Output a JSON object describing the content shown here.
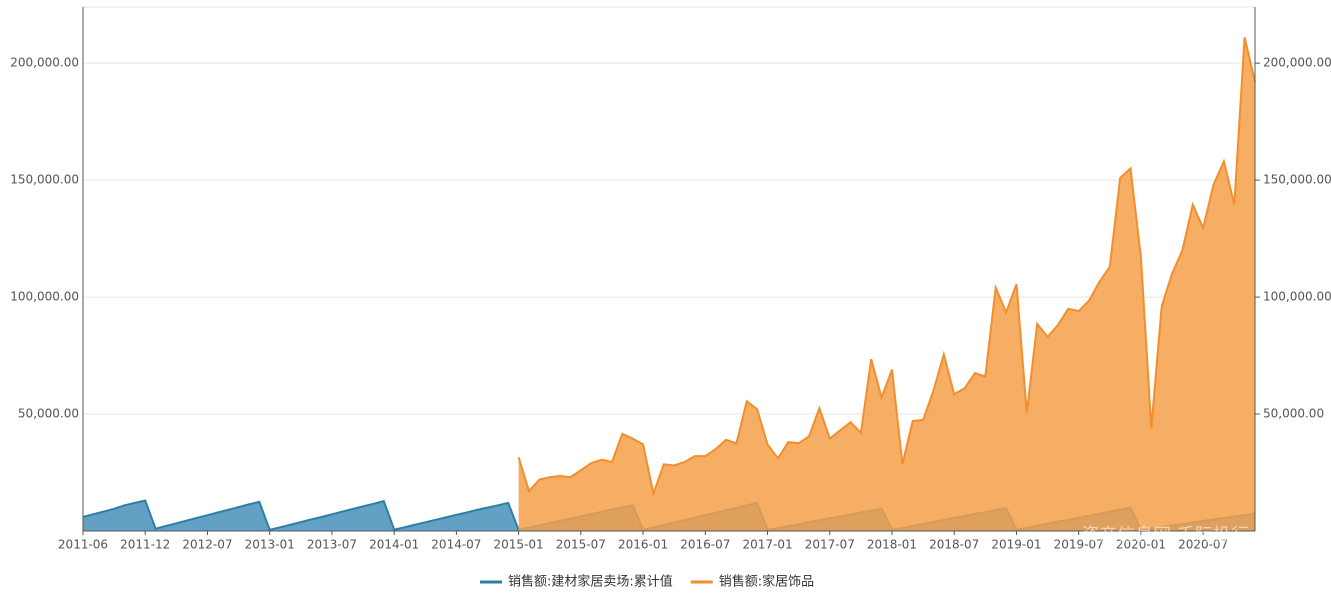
{
  "chart_data": {
    "type": "area",
    "categories": [
      "2011-06",
      null,
      null,
      null,
      null,
      null,
      "2011-12",
      null,
      null,
      null,
      null,
      null,
      "2012-07",
      null,
      null,
      null,
      null,
      null,
      "2013-01",
      null,
      null,
      null,
      null,
      null,
      "2013-07",
      null,
      null,
      null,
      null,
      null,
      "2014-01",
      null,
      null,
      null,
      null,
      null,
      "2014-07",
      null,
      null,
      null,
      null,
      null,
      "2015-01",
      null,
      null,
      null,
      null,
      null,
      "2015-07",
      null,
      null,
      null,
      null,
      null,
      "2016-01",
      null,
      null,
      null,
      null,
      null,
      "2016-07",
      null,
      null,
      null,
      null,
      null,
      "2017-01",
      null,
      null,
      null,
      null,
      null,
      "2017-07",
      null,
      null,
      null,
      null,
      null,
      "2018-01",
      null,
      null,
      null,
      null,
      null,
      "2018-07",
      null,
      null,
      null,
      null,
      null,
      "2019-01",
      null,
      null,
      null,
      null,
      null,
      "2019-07",
      null,
      null,
      null,
      null,
      null,
      "2020-01",
      null,
      null,
      null,
      null,
      null,
      "2020-07",
      null,
      null,
      null,
      null,
      null
    ],
    "series": [
      {
        "name": "销售额:建材家居卖场:累计值",
        "color": "#2e7ea6",
        "fill": "#3b8ab5",
        "axis": "y",
        "values": [
          6000,
          7200,
          8300,
          9500,
          11000,
          12000,
          13000,
          1000,
          2150,
          3300,
          4450,
          5600,
          6750,
          7900,
          9050,
          10200,
          11350,
          12500,
          500,
          1600,
          2700,
          3800,
          4900,
          6000,
          7100,
          8300,
          9400,
          10500,
          11600,
          12800,
          600,
          1600,
          2700,
          3700,
          4800,
          5800,
          6900,
          7900,
          9000,
          10000,
          11000,
          12000,
          500,
          1500,
          2400,
          3400,
          4400,
          5300,
          6300,
          7200,
          8200,
          9200,
          10100,
          11000,
          500,
          1500,
          2600,
          3600,
          4700,
          5700,
          6800,
          7800,
          8900,
          9900,
          11000,
          12000,
          500,
          1300,
          2100,
          2900,
          3800,
          4600,
          5400,
          6200,
          7000,
          7900,
          8700,
          9500,
          500,
          1300,
          2200,
          3000,
          3900,
          4700,
          5600,
          6400,
          7300,
          8100,
          9000,
          9800,
          500,
          1400,
          2200,
          3100,
          4000,
          4800,
          5700,
          6600,
          7400,
          8300,
          9200,
          10000,
          500,
          1100,
          1700,
          2400,
          3000,
          3600,
          4300,
          4900,
          5500,
          6200,
          6800,
          7500
        ]
      },
      {
        "name": "销售额:家居饰品",
        "color": "#f28e2b",
        "fill": "#f5a04a",
        "axis": "y2",
        "values": [
          null,
          null,
          null,
          null,
          null,
          null,
          null,
          null,
          null,
          null,
          null,
          null,
          null,
          null,
          null,
          null,
          null,
          null,
          null,
          null,
          null,
          null,
          null,
          null,
          null,
          null,
          null,
          null,
          null,
          null,
          null,
          null,
          null,
          null,
          null,
          null,
          null,
          null,
          null,
          null,
          null,
          null,
          31500,
          17000,
          22000,
          23000,
          23500,
          23000,
          26000,
          29000,
          30500,
          29500,
          41500,
          39500,
          37000,
          16000,
          28500,
          28000,
          29500,
          32000,
          32000,
          35000,
          39000,
          37500,
          55500,
          52000,
          37000,
          31000,
          38000,
          37500,
          40500,
          52500,
          39500,
          43000,
          46500,
          42000,
          73500,
          57000,
          69000,
          28500,
          47000,
          47500,
          60000,
          75500,
          58500,
          61000,
          67500,
          66000,
          104000,
          93500,
          105500,
          50500,
          88500,
          83000,
          88000,
          95000,
          94000,
          98500,
          106500,
          113000,
          151000,
          155000,
          117000,
          44000,
          96000,
          110000,
          120000,
          139500,
          129500,
          148000,
          158000,
          139500,
          211000,
          192000
        ]
      }
    ],
    "ylim": [
      0,
      224000
    ],
    "yticks": [
      {
        "value": 50000,
        "label": "50,000.00"
      },
      {
        "value": 100000,
        "label": "100,000.00"
      },
      {
        "value": 150000,
        "label": "150,000.00"
      },
      {
        "value": 200000,
        "label": "200,000.00"
      }
    ],
    "y2lim": [
      0,
      224000
    ],
    "y2ticks": [
      {
        "value": 50000,
        "label": "50,000.00"
      },
      {
        "value": 100000,
        "label": "100,000.00"
      },
      {
        "value": 150000,
        "label": "150,000.00"
      },
      {
        "value": 200000,
        "label": "200,000.00"
      }
    ],
    "grid": true,
    "legend": "bottom",
    "watermark": "资产信息网 千际投行"
  }
}
